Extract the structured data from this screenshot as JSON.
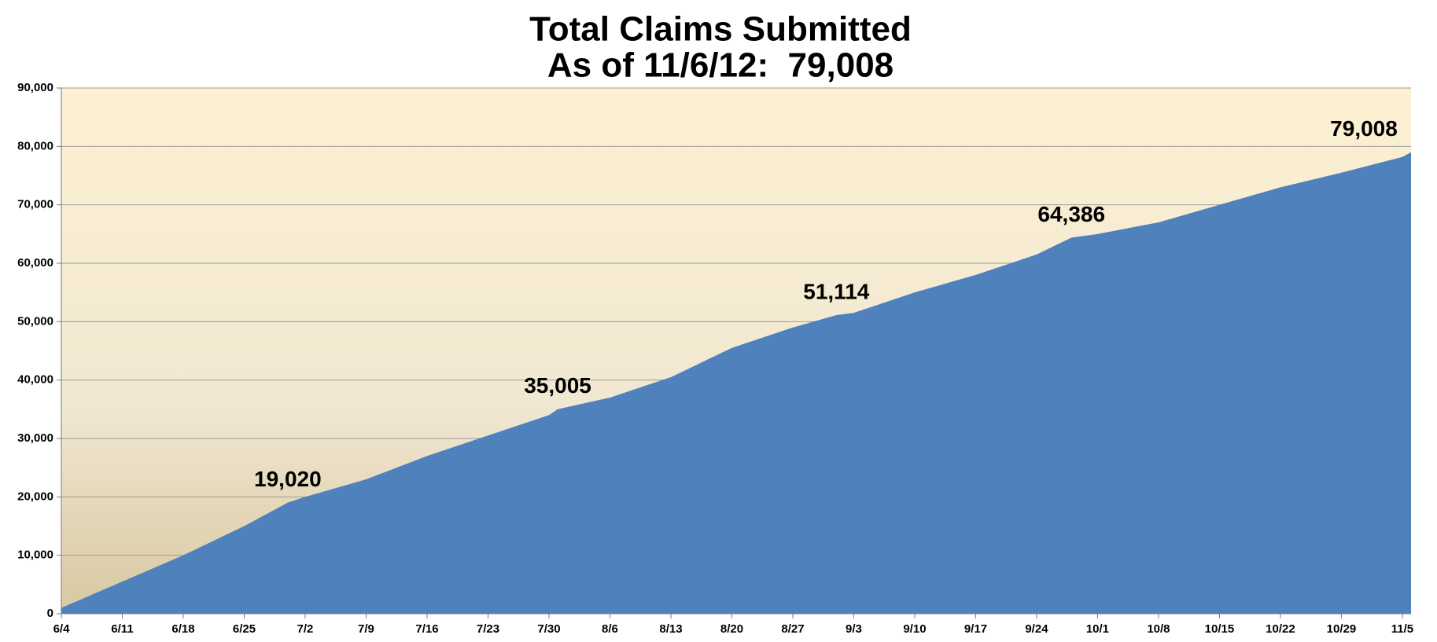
{
  "chart_data": {
    "type": "area",
    "title": "Total Claims Submitted",
    "subtitle": "As of 11/6/12:  79,008",
    "x": [
      0,
      7,
      14,
      21,
      26,
      28,
      35,
      42,
      49,
      56,
      57,
      63,
      70,
      77,
      84,
      89,
      91,
      98,
      105,
      112,
      116,
      119,
      126,
      133,
      140,
      147,
      154,
      155
    ],
    "values": [
      1000,
      5500,
      10000,
      15000,
      19020,
      20000,
      23000,
      27000,
      30500,
      34000,
      35005,
      37000,
      40500,
      45500,
      49000,
      51114,
      51500,
      55000,
      58000,
      61500,
      64386,
      65000,
      67000,
      70000,
      73000,
      75500,
      78200,
      79008
    ],
    "value_labels": [
      null,
      null,
      null,
      null,
      "19,020",
      null,
      null,
      null,
      null,
      null,
      "35,005",
      null,
      null,
      null,
      null,
      "51,114",
      null,
      null,
      null,
      null,
      "64,386",
      null,
      null,
      null,
      null,
      null,
      null,
      "79,008"
    ],
    "color": "#4f81bd",
    "xlim": [
      0,
      155
    ],
    "xticks": [
      {
        "value": 0,
        "label": "6/4"
      },
      {
        "value": 7,
        "label": "6/11"
      },
      {
        "value": 14,
        "label": "6/18"
      },
      {
        "value": 21,
        "label": "6/25"
      },
      {
        "value": 28,
        "label": "7/2"
      },
      {
        "value": 35,
        "label": "7/9"
      },
      {
        "value": 42,
        "label": "7/16"
      },
      {
        "value": 49,
        "label": "7/23"
      },
      {
        "value": 56,
        "label": "7/30"
      },
      {
        "value": 63,
        "label": "8/6"
      },
      {
        "value": 70,
        "label": "8/13"
      },
      {
        "value": 77,
        "label": "8/20"
      },
      {
        "value": 84,
        "label": "8/27"
      },
      {
        "value": 91,
        "label": "9/3"
      },
      {
        "value": 98,
        "label": "9/10"
      },
      {
        "value": 105,
        "label": "9/17"
      },
      {
        "value": 112,
        "label": "9/24"
      },
      {
        "value": 119,
        "label": "10/1"
      },
      {
        "value": 126,
        "label": "10/8"
      },
      {
        "value": 133,
        "label": "10/15"
      },
      {
        "value": 140,
        "label": "10/22"
      },
      {
        "value": 147,
        "label": "10/29"
      },
      {
        "value": 154,
        "label": "11/5"
      }
    ],
    "ylim": [
      0,
      90000
    ],
    "yticks": [
      0,
      {
        "value": 10000,
        "label": "10,000"
      },
      {
        "value": 20000,
        "label": "20,000"
      },
      {
        "value": 30000,
        "label": "30,000"
      },
      {
        "value": 40000,
        "label": "40,000"
      },
      {
        "value": 50000,
        "label": "50,000"
      },
      {
        "value": 60000,
        "label": "60,000"
      },
      {
        "value": 70000,
        "label": "70,000"
      },
      {
        "value": 80000,
        "label": "80,000"
      },
      {
        "value": 90000,
        "label": "90,000"
      }
    ],
    "grid": true
  }
}
